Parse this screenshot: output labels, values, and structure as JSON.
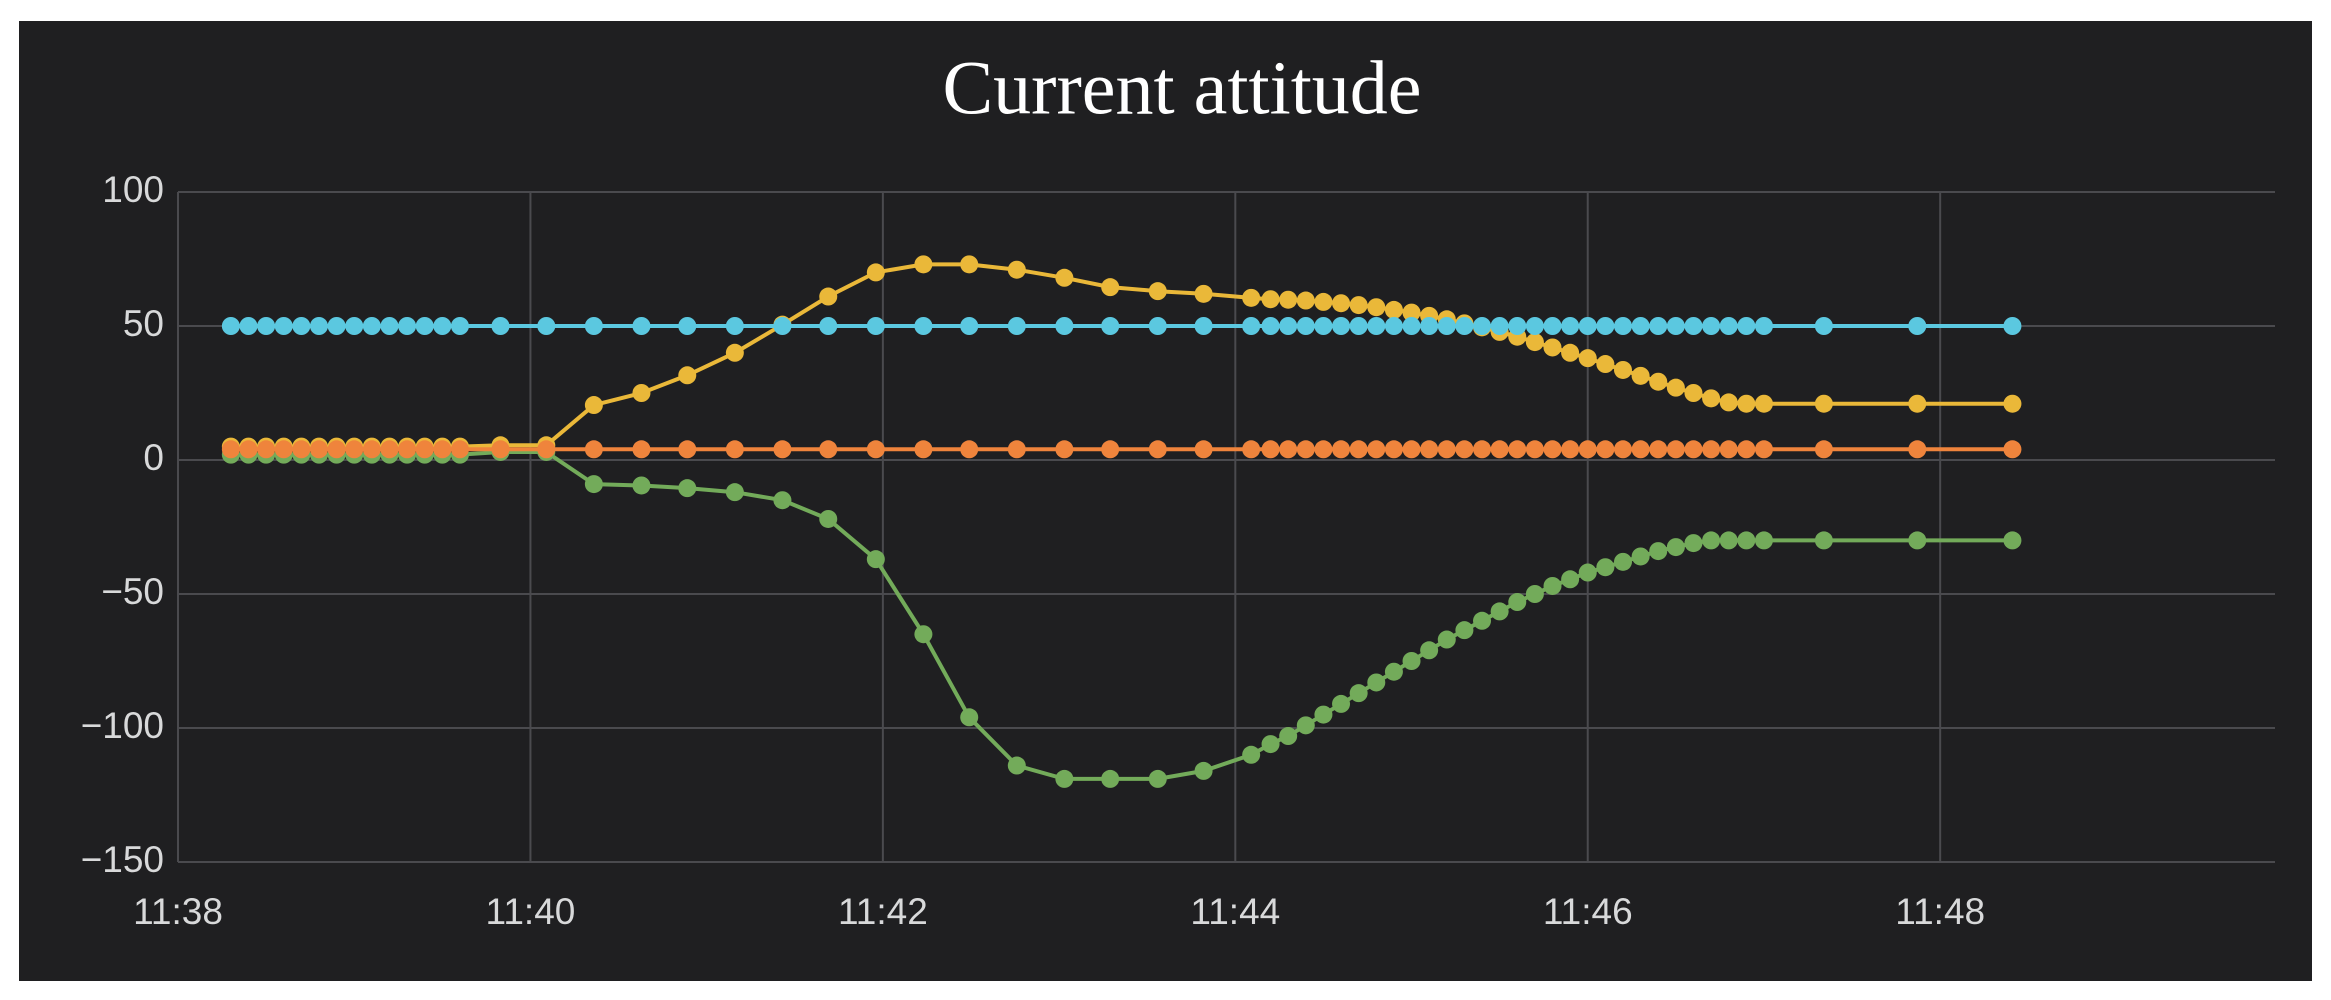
{
  "chart_data": {
    "type": "line",
    "title": "Current attitude",
    "x": [
      698.3,
      698.4,
      698.5,
      698.6,
      698.7,
      698.8,
      698.9,
      699.0,
      699.1,
      699.2,
      699.3,
      699.4,
      699.5,
      699.6,
      699.83,
      700.09,
      700.36,
      700.63,
      700.89,
      701.16,
      701.43,
      701.69,
      701.96,
      702.23,
      702.49,
      702.76,
      703.03,
      703.29,
      703.56,
      703.82,
      704.09,
      704.2,
      704.3,
      704.4,
      704.5,
      704.6,
      704.7,
      704.8,
      704.9,
      705.0,
      705.1,
      705.2,
      705.3,
      705.4,
      705.5,
      705.6,
      705.7,
      705.8,
      705.9,
      706.0,
      706.1,
      706.2,
      706.3,
      706.4,
      706.5,
      706.6,
      706.7,
      706.8,
      706.9,
      707.0,
      707.34,
      707.87,
      708.41
    ],
    "series": [
      {
        "color": "#73ab5a",
        "values": [
          2,
          2,
          2,
          2,
          2,
          2,
          2,
          2,
          2,
          2,
          2,
          2,
          2,
          2,
          3,
          3,
          -9,
          -9.5,
          -10.5,
          -12,
          -15,
          -22,
          -37,
          -65,
          -96,
          -114,
          -119,
          -119,
          -119,
          -116,
          -110,
          -106,
          -103,
          -99,
          -95,
          -91,
          -87,
          -83,
          -79,
          -75,
          -71,
          -67,
          -63.5,
          -60,
          -56.5,
          -53,
          -50,
          -47,
          -44.5,
          -42,
          -40,
          -38,
          -36,
          -34,
          -32.5,
          -31,
          -30,
          -30,
          -30,
          -30,
          -30,
          -30,
          -30
        ]
      },
      {
        "color": "#eab839",
        "values": [
          5,
          5,
          5,
          5,
          5,
          5,
          5,
          5,
          5,
          5,
          5,
          5,
          5,
          5,
          5.5,
          5.5,
          20.5,
          25,
          31.6,
          40,
          50.5,
          61,
          70,
          73,
          73,
          71,
          68,
          64.5,
          63,
          62,
          60.5,
          60,
          59.8,
          59.5,
          59,
          58.5,
          57.8,
          57,
          56,
          55,
          53.8,
          52.5,
          51,
          49.5,
          47.8,
          46,
          44,
          42,
          40,
          38,
          35.8,
          33.6,
          31.4,
          29.2,
          27,
          25,
          23,
          21.5,
          21,
          21,
          21,
          21,
          21
        ]
      },
      {
        "color": "#ef843c",
        "values": [
          4,
          4,
          4,
          4,
          4,
          4,
          4,
          4,
          4,
          4,
          4,
          4,
          4,
          4,
          4,
          4,
          4,
          4,
          4,
          4,
          4,
          4,
          4,
          4,
          4,
          4,
          4,
          4,
          4,
          4,
          4,
          4,
          4,
          4,
          4,
          4,
          4,
          4,
          4,
          4,
          4,
          4,
          4,
          4,
          4,
          4,
          4,
          4,
          4,
          4,
          4,
          4,
          4,
          4,
          4,
          4,
          4,
          4,
          4,
          4,
          4,
          4,
          4
        ]
      },
      {
        "color": "#5bc8e0",
        "values": [
          50,
          50,
          50,
          50,
          50,
          50,
          50,
          50,
          50,
          50,
          50,
          50,
          50,
          50,
          50,
          50,
          50,
          50,
          50,
          50,
          50,
          50,
          50,
          50,
          50,
          50,
          50,
          50,
          50,
          50,
          50,
          50,
          50,
          50,
          50,
          50,
          50,
          50,
          50,
          50,
          50,
          50,
          50,
          50,
          50,
          50,
          50,
          50,
          50,
          50,
          50,
          50,
          50,
          50,
          50,
          50,
          50,
          50,
          50,
          50,
          50,
          50,
          50
        ]
      }
    ],
    "xlim": [
      698,
      709.9
    ],
    "xticks": [
      {
        "value": 698,
        "label": "11:38"
      },
      {
        "value": 700,
        "label": "11:40"
      },
      {
        "value": 702,
        "label": "11:42"
      },
      {
        "value": 704,
        "label": "11:44"
      },
      {
        "value": 706,
        "label": "11:46"
      },
      {
        "value": 708,
        "label": "11:48"
      }
    ],
    "ylim": [
      -150,
      100
    ],
    "yticks": [
      {
        "value": -150,
        "label": "−150"
      },
      {
        "value": -100,
        "label": "−100"
      },
      {
        "value": -50,
        "label": "−50"
      },
      0,
      50,
      100
    ],
    "grid": true
  }
}
